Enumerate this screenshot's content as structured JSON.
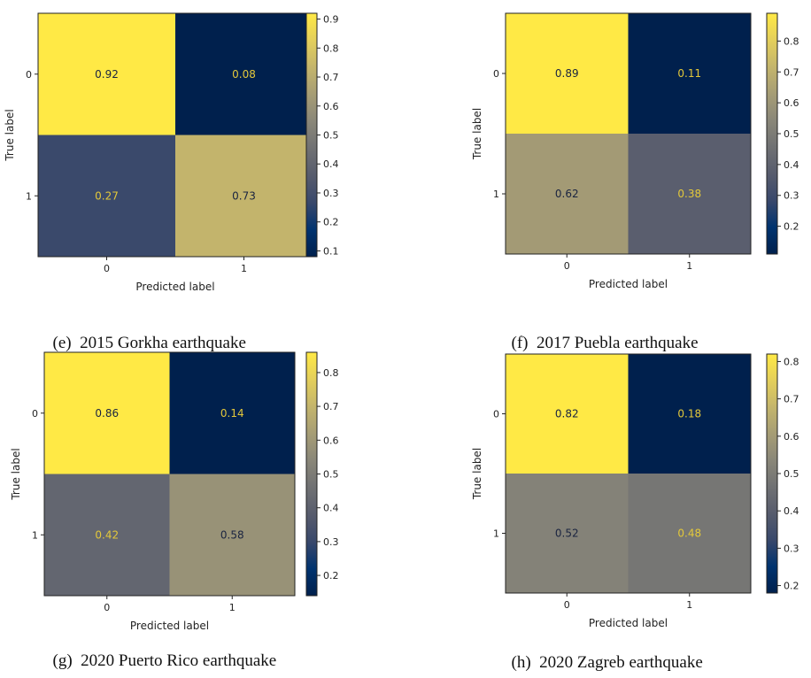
{
  "colors": {
    "cmap": "cividis",
    "cmap_stops": [
      "#00204d",
      "#00336f",
      "#39486b",
      "#575c6d",
      "#707173",
      "#8a8779",
      "#a69d75",
      "#c4b56c",
      "#e4cf5b",
      "#ffe945"
    ]
  },
  "chart_data": [
    {
      "type": "heatmap",
      "caption_tag": "(e)",
      "caption_text": "2015 Gorkha earthquake",
      "row_categories": [
        "0",
        "1"
      ],
      "col_categories": [
        "0",
        "1"
      ],
      "values": [
        [
          0.92,
          0.08
        ],
        [
          0.27,
          0.73
        ]
      ],
      "cell_labels": [
        [
          "0.92",
          "0.08"
        ],
        [
          "0.27",
          "0.73"
        ]
      ],
      "xlabel": "Predicted label",
      "ylabel": "True label",
      "colorbar": {
        "min": 0.08,
        "max": 0.92,
        "ticks": [
          "0.1",
          "0.2",
          "0.3",
          "0.4",
          "0.5",
          "0.6",
          "0.7",
          "0.8",
          "0.9"
        ],
        "tick_values": [
          0.1,
          0.2,
          0.3,
          0.4,
          0.5,
          0.6,
          0.7,
          0.8,
          0.9
        ]
      },
      "grid": false
    },
    {
      "type": "heatmap",
      "caption_tag": "(f)",
      "caption_text": "2017 Puebla earthquake",
      "row_categories": [
        "0",
        "1"
      ],
      "col_categories": [
        "0",
        "1"
      ],
      "values": [
        [
          0.89,
          0.11
        ],
        [
          0.62,
          0.38
        ]
      ],
      "cell_labels": [
        [
          "0.89",
          "0.11"
        ],
        [
          "0.62",
          "0.38"
        ]
      ],
      "xlabel": "Predicted label",
      "ylabel": "True label",
      "colorbar": {
        "min": 0.11,
        "max": 0.89,
        "ticks": [
          "0.2",
          "0.3",
          "0.4",
          "0.5",
          "0.6",
          "0.7",
          "0.8"
        ],
        "tick_values": [
          0.2,
          0.3,
          0.4,
          0.5,
          0.6,
          0.7,
          0.8
        ]
      },
      "grid": false
    },
    {
      "type": "heatmap",
      "caption_tag": "(g)",
      "caption_text": "2020 Puerto Rico earthquake",
      "row_categories": [
        "0",
        "1"
      ],
      "col_categories": [
        "0",
        "1"
      ],
      "values": [
        [
          0.86,
          0.14
        ],
        [
          0.42,
          0.58
        ]
      ],
      "cell_labels": [
        [
          "0.86",
          "0.14"
        ],
        [
          "0.42",
          "0.58"
        ]
      ],
      "xlabel": "Predicted label",
      "ylabel": "True label",
      "colorbar": {
        "min": 0.14,
        "max": 0.86,
        "ticks": [
          "0.2",
          "0.3",
          "0.4",
          "0.5",
          "0.6",
          "0.7",
          "0.8"
        ],
        "tick_values": [
          0.2,
          0.3,
          0.4,
          0.5,
          0.6,
          0.7,
          0.8
        ]
      },
      "grid": false
    },
    {
      "type": "heatmap",
      "caption_tag": "(h)",
      "caption_text": "2020 Zagreb earthquake",
      "row_categories": [
        "0",
        "1"
      ],
      "col_categories": [
        "0",
        "1"
      ],
      "values": [
        [
          0.82,
          0.18
        ],
        [
          0.52,
          0.48
        ]
      ],
      "cell_labels": [
        [
          "0.82",
          "0.18"
        ],
        [
          "0.52",
          "0.48"
        ]
      ],
      "xlabel": "Predicted label",
      "ylabel": "True label",
      "colorbar": {
        "min": 0.18,
        "max": 0.82,
        "ticks": [
          "0.2",
          "0.3",
          "0.4",
          "0.5",
          "0.6",
          "0.7",
          "0.8"
        ],
        "tick_values": [
          0.2,
          0.3,
          0.4,
          0.5,
          0.6,
          0.7,
          0.8
        ]
      },
      "grid": false
    }
  ]
}
